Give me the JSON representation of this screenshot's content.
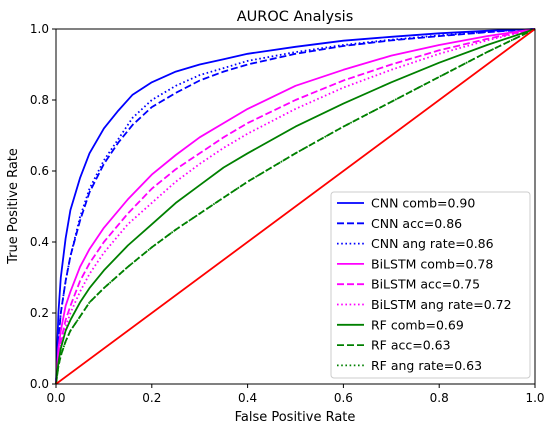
{
  "chart_data": {
    "type": "line",
    "title": "AUROC Analysis",
    "xlabel": "False Positive Rate",
    "ylabel": "True Positive Rate",
    "xlim": [
      0.0,
      1.0
    ],
    "ylim": [
      0.0,
      1.0
    ],
    "x_ticks": [
      "0.0",
      "0.2",
      "0.4",
      "0.6",
      "0.8",
      "1.0"
    ],
    "y_ticks": [
      "0.0",
      "0.2",
      "0.4",
      "0.6",
      "0.8",
      "1.0"
    ],
    "grid": false,
    "legend_position": "lower-right",
    "series": [
      {
        "name": "CNN comb=0.90",
        "color": "#0000ff",
        "style": "solid",
        "points": [
          [
            0,
            0
          ],
          [
            0.005,
            0.2
          ],
          [
            0.01,
            0.3
          ],
          [
            0.02,
            0.41
          ],
          [
            0.03,
            0.49
          ],
          [
            0.05,
            0.58
          ],
          [
            0.07,
            0.65
          ],
          [
            0.1,
            0.72
          ],
          [
            0.13,
            0.77
          ],
          [
            0.16,
            0.815
          ],
          [
            0.2,
            0.85
          ],
          [
            0.25,
            0.88
          ],
          [
            0.3,
            0.9
          ],
          [
            0.35,
            0.915
          ],
          [
            0.4,
            0.93
          ],
          [
            0.5,
            0.95
          ],
          [
            0.6,
            0.967
          ],
          [
            0.7,
            0.978
          ],
          [
            0.8,
            0.988
          ],
          [
            0.9,
            0.995
          ],
          [
            1.0,
            1.0
          ]
        ]
      },
      {
        "name": "CNN acc=0.86",
        "color": "#0000ff",
        "style": "dashed",
        "points": [
          [
            0,
            0
          ],
          [
            0.005,
            0.12
          ],
          [
            0.01,
            0.2
          ],
          [
            0.02,
            0.29
          ],
          [
            0.03,
            0.36
          ],
          [
            0.05,
            0.46
          ],
          [
            0.07,
            0.54
          ],
          [
            0.1,
            0.62
          ],
          [
            0.13,
            0.68
          ],
          [
            0.16,
            0.73
          ],
          [
            0.2,
            0.78
          ],
          [
            0.25,
            0.82
          ],
          [
            0.3,
            0.855
          ],
          [
            0.35,
            0.88
          ],
          [
            0.4,
            0.9
          ],
          [
            0.5,
            0.93
          ],
          [
            0.6,
            0.952
          ],
          [
            0.7,
            0.968
          ],
          [
            0.8,
            0.98
          ],
          [
            0.9,
            0.991
          ],
          [
            1.0,
            1.0
          ]
        ]
      },
      {
        "name": "CNN ang rate=0.86",
        "color": "#0000ff",
        "style": "dotted",
        "points": [
          [
            0,
            0
          ],
          [
            0.005,
            0.13
          ],
          [
            0.01,
            0.2
          ],
          [
            0.02,
            0.29
          ],
          [
            0.03,
            0.36
          ],
          [
            0.05,
            0.47
          ],
          [
            0.07,
            0.55
          ],
          [
            0.1,
            0.63
          ],
          [
            0.13,
            0.69
          ],
          [
            0.16,
            0.75
          ],
          [
            0.2,
            0.8
          ],
          [
            0.25,
            0.84
          ],
          [
            0.3,
            0.87
          ],
          [
            0.35,
            0.89
          ],
          [
            0.4,
            0.91
          ],
          [
            0.5,
            0.935
          ],
          [
            0.6,
            0.955
          ],
          [
            0.7,
            0.97
          ],
          [
            0.8,
            0.982
          ],
          [
            0.9,
            0.992
          ],
          [
            1.0,
            1.0
          ]
        ]
      },
      {
        "name": "BiLSTM comb=0.78",
        "color": "#ff00ff",
        "style": "solid",
        "points": [
          [
            0,
            0
          ],
          [
            0.005,
            0.1
          ],
          [
            0.01,
            0.15
          ],
          [
            0.02,
            0.22
          ],
          [
            0.03,
            0.26
          ],
          [
            0.05,
            0.33
          ],
          [
            0.07,
            0.38
          ],
          [
            0.1,
            0.44
          ],
          [
            0.15,
            0.52
          ],
          [
            0.2,
            0.59
          ],
          [
            0.25,
            0.645
          ],
          [
            0.3,
            0.695
          ],
          [
            0.35,
            0.735
          ],
          [
            0.4,
            0.775
          ],
          [
            0.5,
            0.84
          ],
          [
            0.6,
            0.885
          ],
          [
            0.7,
            0.925
          ],
          [
            0.8,
            0.955
          ],
          [
            0.9,
            0.98
          ],
          [
            1.0,
            1.0
          ]
        ]
      },
      {
        "name": "BiLSTM acc=0.75",
        "color": "#ff00ff",
        "style": "dashed",
        "points": [
          [
            0,
            0
          ],
          [
            0.005,
            0.08
          ],
          [
            0.01,
            0.12
          ],
          [
            0.02,
            0.18
          ],
          [
            0.03,
            0.22
          ],
          [
            0.05,
            0.29
          ],
          [
            0.07,
            0.34
          ],
          [
            0.1,
            0.4
          ],
          [
            0.15,
            0.48
          ],
          [
            0.2,
            0.55
          ],
          [
            0.25,
            0.605
          ],
          [
            0.3,
            0.65
          ],
          [
            0.35,
            0.695
          ],
          [
            0.4,
            0.735
          ],
          [
            0.5,
            0.8
          ],
          [
            0.6,
            0.855
          ],
          [
            0.7,
            0.9
          ],
          [
            0.8,
            0.94
          ],
          [
            0.9,
            0.972
          ],
          [
            1.0,
            1.0
          ]
        ]
      },
      {
        "name": "BiLSTM ang rate=0.72",
        "color": "#ff00ff",
        "style": "dotted",
        "points": [
          [
            0,
            0
          ],
          [
            0.005,
            0.07
          ],
          [
            0.01,
            0.11
          ],
          [
            0.02,
            0.16
          ],
          [
            0.03,
            0.2
          ],
          [
            0.05,
            0.26
          ],
          [
            0.07,
            0.31
          ],
          [
            0.1,
            0.37
          ],
          [
            0.15,
            0.45
          ],
          [
            0.2,
            0.51
          ],
          [
            0.25,
            0.57
          ],
          [
            0.3,
            0.62
          ],
          [
            0.35,
            0.665
          ],
          [
            0.4,
            0.705
          ],
          [
            0.5,
            0.775
          ],
          [
            0.6,
            0.835
          ],
          [
            0.7,
            0.885
          ],
          [
            0.8,
            0.93
          ],
          [
            0.9,
            0.968
          ],
          [
            1.0,
            1.0
          ]
        ]
      },
      {
        "name": "RF comb=0.69",
        "color": "#008000",
        "style": "solid",
        "points": [
          [
            0,
            0
          ],
          [
            0.005,
            0.06
          ],
          [
            0.01,
            0.1
          ],
          [
            0.02,
            0.15
          ],
          [
            0.03,
            0.18
          ],
          [
            0.05,
            0.23
          ],
          [
            0.07,
            0.27
          ],
          [
            0.1,
            0.32
          ],
          [
            0.15,
            0.39
          ],
          [
            0.2,
            0.45
          ],
          [
            0.25,
            0.51
          ],
          [
            0.3,
            0.56
          ],
          [
            0.35,
            0.61
          ],
          [
            0.4,
            0.65
          ],
          [
            0.5,
            0.725
          ],
          [
            0.6,
            0.79
          ],
          [
            0.7,
            0.85
          ],
          [
            0.8,
            0.905
          ],
          [
            0.9,
            0.955
          ],
          [
            1.0,
            1.0
          ]
        ]
      },
      {
        "name": "RF acc=0.63",
        "color": "#008000",
        "style": "dashed",
        "points": [
          [
            0,
            0
          ],
          [
            0.005,
            0.05
          ],
          [
            0.01,
            0.08
          ],
          [
            0.02,
            0.12
          ],
          [
            0.03,
            0.15
          ],
          [
            0.05,
            0.19
          ],
          [
            0.07,
            0.23
          ],
          [
            0.1,
            0.27
          ],
          [
            0.15,
            0.33
          ],
          [
            0.2,
            0.385
          ],
          [
            0.25,
            0.435
          ],
          [
            0.3,
            0.48
          ],
          [
            0.35,
            0.525
          ],
          [
            0.4,
            0.57
          ],
          [
            0.5,
            0.65
          ],
          [
            0.6,
            0.725
          ],
          [
            0.7,
            0.795
          ],
          [
            0.8,
            0.865
          ],
          [
            0.9,
            0.935
          ],
          [
            1.0,
            1.0
          ]
        ]
      },
      {
        "name": "RF ang rate=0.63",
        "color": "#008000",
        "style": "dotted",
        "points": [
          [
            0,
            0
          ],
          [
            0.005,
            0.05
          ],
          [
            0.01,
            0.08
          ],
          [
            0.02,
            0.12
          ],
          [
            0.03,
            0.15
          ],
          [
            0.05,
            0.19
          ],
          [
            0.07,
            0.23
          ],
          [
            0.1,
            0.27
          ],
          [
            0.15,
            0.33
          ],
          [
            0.2,
            0.385
          ],
          [
            0.25,
            0.435
          ],
          [
            0.3,
            0.48
          ],
          [
            0.35,
            0.525
          ],
          [
            0.4,
            0.57
          ],
          [
            0.5,
            0.65
          ],
          [
            0.6,
            0.725
          ],
          [
            0.7,
            0.795
          ],
          [
            0.8,
            0.865
          ],
          [
            0.9,
            0.935
          ],
          [
            1.0,
            1.0
          ]
        ]
      },
      {
        "name": "",
        "color": "#ff0000",
        "style": "solid",
        "points": [
          [
            0,
            0
          ],
          [
            1,
            1
          ]
        ]
      }
    ]
  }
}
